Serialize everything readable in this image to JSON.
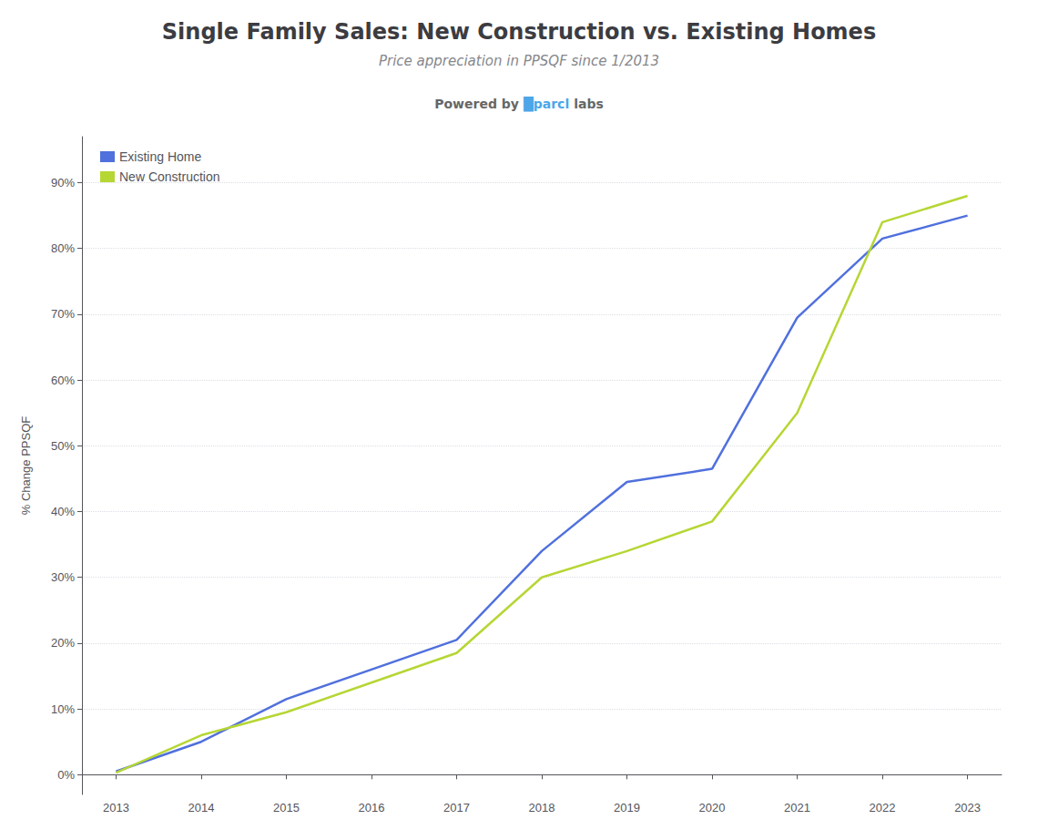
{
  "chart_data": {
    "type": "line",
    "title": "Single Family Sales: New Construction vs. Existing Homes",
    "subtitle": "Price appreciation in PPSQF since 1/2013",
    "ylabel": "% Change PPSQF",
    "annotations": [
      {
        "text": "Powered by"
      },
      {
        "text": "█parcl",
        "color": "#4da6e8"
      },
      {
        "text": "labs"
      }
    ],
    "x": [
      2013,
      2014,
      2015,
      2016,
      2017,
      2018,
      2019,
      2020,
      2021,
      2022,
      2023
    ],
    "series": [
      {
        "name": "Existing Home",
        "values": [
          0.5,
          5.0,
          11.5,
          16.0,
          20.5,
          34.0,
          44.5,
          46.5,
          69.5,
          81.5,
          85.0
        ]
      },
      {
        "name": "New Construction",
        "values": [
          0.3,
          6.0,
          9.5,
          14.0,
          18.5,
          30.0,
          34.0,
          38.5,
          55.0,
          84.0,
          88.0
        ]
      }
    ],
    "xlim": [
      2012.6,
      2023.4
    ],
    "xticks": [
      2013,
      2014,
      2015,
      2016,
      2017,
      2018,
      2019,
      2020,
      2021,
      2022,
      2023
    ],
    "ylim": [
      -3,
      97
    ],
    "yticks": [
      {
        "value": 0,
        "label": "0%"
      },
      {
        "value": 10,
        "label": "10%"
      },
      {
        "value": 20,
        "label": "20%"
      },
      {
        "value": 30,
        "label": "30%"
      },
      {
        "value": 40,
        "label": "40%"
      },
      {
        "value": 50,
        "label": "50%"
      },
      {
        "value": 60,
        "label": "60%"
      },
      {
        "value": 70,
        "label": "70%"
      },
      {
        "value": 80,
        "label": "80%"
      },
      {
        "value": 90,
        "label": "90%"
      }
    ],
    "grid": true,
    "legend": "top-left"
  }
}
